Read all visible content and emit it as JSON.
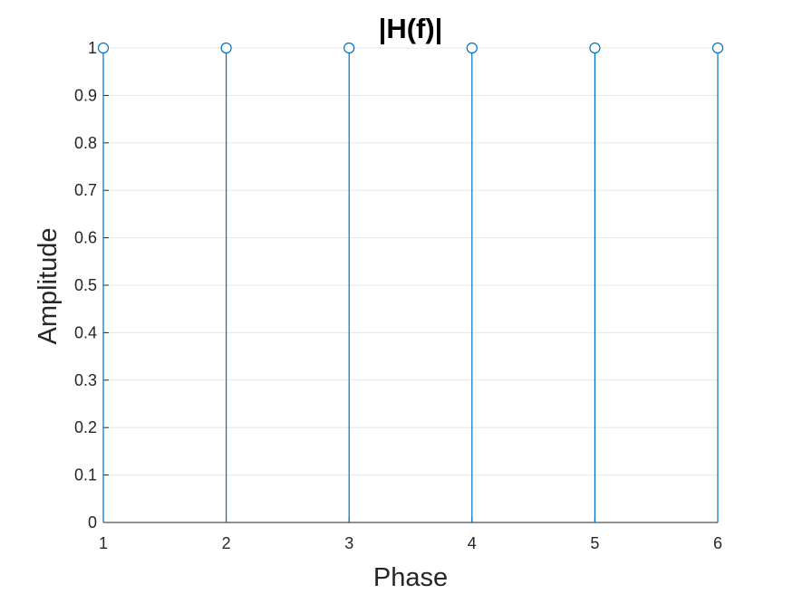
{
  "chart_data": {
    "type": "stem",
    "title": "|H(f)|",
    "xlabel": "Phase",
    "ylabel": "Amplitude",
    "xlim": [
      1,
      6
    ],
    "ylim": [
      0,
      1
    ],
    "x_ticks": [
      "1",
      "2",
      "3",
      "4",
      "5",
      "6"
    ],
    "y_ticks": [
      "0",
      "0.1",
      "0.2",
      "0.3",
      "0.4",
      "0.5",
      "0.6",
      "0.7",
      "0.8",
      "0.9",
      "1"
    ],
    "grid": "horizontal",
    "series": [
      {
        "x": [
          1,
          2,
          3,
          4,
          5,
          6
        ],
        "values": [
          1,
          1,
          1,
          1,
          1,
          1
        ]
      }
    ],
    "colors": {
      "series": "#0072BD",
      "grid": "#e6e6e6",
      "axis": "#262626"
    }
  }
}
